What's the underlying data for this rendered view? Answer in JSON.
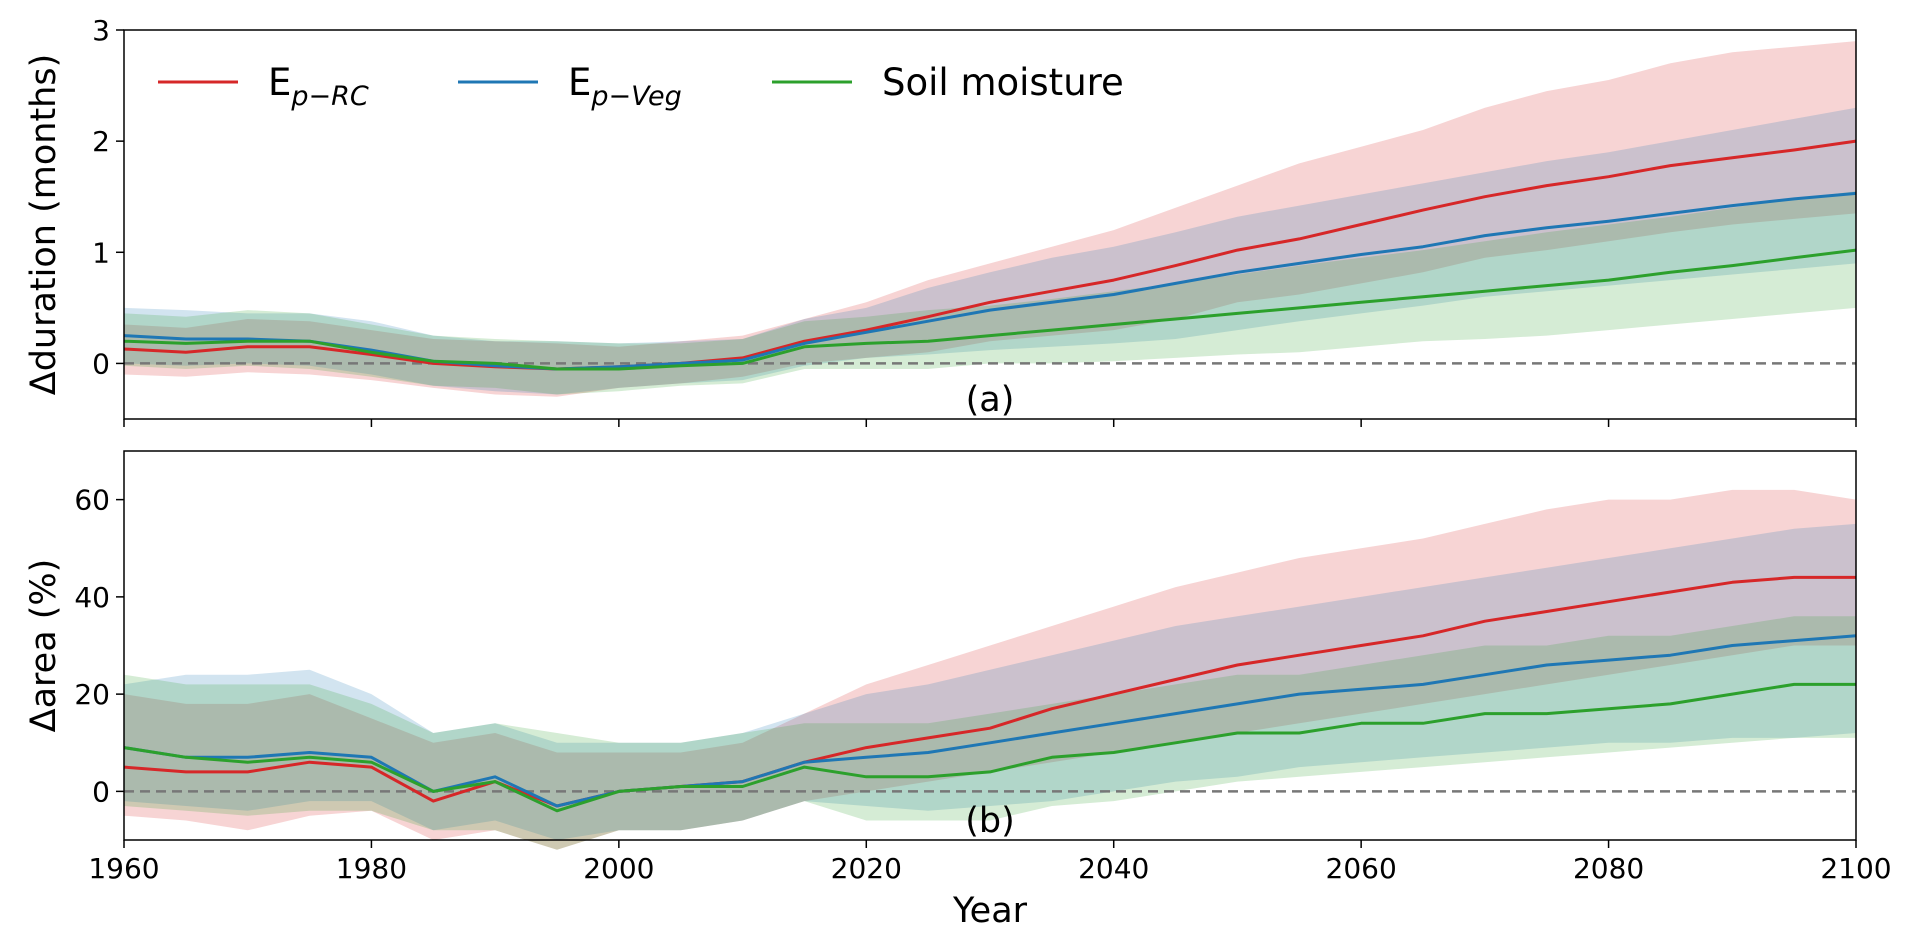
{
  "chart_data": {
    "type": "line",
    "x_range": [
      1960,
      2100
    ],
    "x_ticks": [
      1960,
      1980,
      2000,
      2020,
      2040,
      2060,
      2080,
      2100
    ],
    "xlabel": "Year",
    "legend": [
      {
        "name": "E",
        "sub": "p−RC",
        "color": "#d62728"
      },
      {
        "name": "E",
        "sub": "p−Veg",
        "color": "#1f77b4"
      },
      {
        "name": "Soil moisture",
        "sub": "",
        "color": "#2ca02c"
      }
    ],
    "panels": [
      {
        "label": "(a)",
        "ylabel": "Δduration (months)",
        "ylim": [
          -0.5,
          3
        ],
        "y_ticks": [
          0,
          1,
          2,
          3
        ],
        "reference_line": 0,
        "series": [
          {
            "name": "Ep-RC",
            "color": "#d62728",
            "years": [
              1960,
              1965,
              1970,
              1975,
              1980,
              1985,
              1990,
              1995,
              2000,
              2005,
              2010,
              2015,
              2020,
              2025,
              2030,
              2035,
              2040,
              2045,
              2050,
              2055,
              2060,
              2065,
              2070,
              2075,
              2080,
              2085,
              2090,
              2095,
              2100
            ],
            "mean": [
              0.13,
              0.1,
              0.15,
              0.15,
              0.08,
              0.0,
              -0.03,
              -0.05,
              -0.03,
              0.0,
              0.05,
              0.2,
              0.3,
              0.42,
              0.55,
              0.65,
              0.75,
              0.88,
              1.02,
              1.12,
              1.25,
              1.38,
              1.5,
              1.6,
              1.68,
              1.78,
              1.85,
              1.92,
              2.0
            ],
            "lower": [
              -0.1,
              -0.12,
              -0.08,
              -0.1,
              -0.15,
              -0.22,
              -0.28,
              -0.3,
              -0.22,
              -0.18,
              -0.12,
              0.0,
              0.05,
              0.1,
              0.2,
              0.25,
              0.3,
              0.4,
              0.55,
              0.62,
              0.72,
              0.82,
              0.95,
              1.02,
              1.1,
              1.18,
              1.25,
              1.3,
              1.35
            ],
            "upper": [
              0.35,
              0.32,
              0.4,
              0.38,
              0.3,
              0.22,
              0.2,
              0.18,
              0.15,
              0.2,
              0.25,
              0.4,
              0.55,
              0.75,
              0.9,
              1.05,
              1.2,
              1.4,
              1.6,
              1.8,
              1.95,
              2.1,
              2.3,
              2.45,
              2.55,
              2.7,
              2.8,
              2.85,
              2.9
            ]
          },
          {
            "name": "Ep-Veg",
            "color": "#1f77b4",
            "years": [
              1960,
              1965,
              1970,
              1975,
              1980,
              1985,
              1990,
              1995,
              2000,
              2005,
              2010,
              2015,
              2020,
              2025,
              2030,
              2035,
              2040,
              2045,
              2050,
              2055,
              2060,
              2065,
              2070,
              2075,
              2080,
              2085,
              2090,
              2095,
              2100
            ],
            "mean": [
              0.25,
              0.22,
              0.22,
              0.2,
              0.12,
              0.02,
              -0.02,
              -0.05,
              -0.03,
              0.0,
              0.03,
              0.18,
              0.28,
              0.38,
              0.48,
              0.55,
              0.62,
              0.72,
              0.82,
              0.9,
              0.98,
              1.05,
              1.15,
              1.22,
              1.28,
              1.35,
              1.42,
              1.48,
              1.53
            ],
            "lower": [
              0.0,
              -0.02,
              0.0,
              -0.02,
              -0.1,
              -0.2,
              -0.25,
              -0.28,
              -0.22,
              -0.18,
              -0.15,
              -0.02,
              0.05,
              0.08,
              0.12,
              0.15,
              0.18,
              0.22,
              0.3,
              0.38,
              0.45,
              0.52,
              0.6,
              0.65,
              0.7,
              0.75,
              0.8,
              0.85,
              0.9
            ],
            "upper": [
              0.5,
              0.48,
              0.45,
              0.45,
              0.38,
              0.25,
              0.2,
              0.2,
              0.18,
              0.2,
              0.22,
              0.4,
              0.5,
              0.68,
              0.82,
              0.95,
              1.05,
              1.18,
              1.32,
              1.42,
              1.52,
              1.62,
              1.72,
              1.82,
              1.9,
              2.0,
              2.1,
              2.2,
              2.3
            ]
          },
          {
            "name": "Soil moisture",
            "color": "#2ca02c",
            "years": [
              1960,
              1965,
              1970,
              1975,
              1980,
              1985,
              1990,
              1995,
              2000,
              2005,
              2010,
              2015,
              2020,
              2025,
              2030,
              2035,
              2040,
              2045,
              2050,
              2055,
              2060,
              2065,
              2070,
              2075,
              2080,
              2085,
              2090,
              2095,
              2100
            ],
            "mean": [
              0.2,
              0.18,
              0.2,
              0.2,
              0.1,
              0.02,
              0.0,
              -0.05,
              -0.05,
              -0.02,
              0.0,
              0.15,
              0.18,
              0.2,
              0.25,
              0.3,
              0.35,
              0.4,
              0.45,
              0.5,
              0.55,
              0.6,
              0.65,
              0.7,
              0.75,
              0.82,
              0.88,
              0.95,
              1.02
            ],
            "lower": [
              -0.02,
              -0.05,
              -0.02,
              -0.05,
              -0.12,
              -0.2,
              -0.22,
              -0.28,
              -0.25,
              -0.2,
              -0.18,
              -0.05,
              -0.05,
              -0.05,
              0.0,
              0.0,
              0.02,
              0.05,
              0.08,
              0.1,
              0.15,
              0.2,
              0.22,
              0.25,
              0.3,
              0.35,
              0.4,
              0.45,
              0.5
            ],
            "upper": [
              0.45,
              0.42,
              0.48,
              0.45,
              0.35,
              0.25,
              0.22,
              0.2,
              0.18,
              0.18,
              0.22,
              0.38,
              0.42,
              0.48,
              0.52,
              0.58,
              0.65,
              0.72,
              0.8,
              0.88,
              0.95,
              1.02,
              1.1,
              1.18,
              1.25,
              1.32,
              1.4,
              1.48,
              1.55
            ]
          }
        ]
      },
      {
        "label": "(b)",
        "ylabel": "Δarea (%)",
        "ylim": [
          -10,
          70
        ],
        "y_ticks": [
          0,
          20,
          40,
          60
        ],
        "reference_line": 0,
        "series": [
          {
            "name": "Ep-RC",
            "color": "#d62728",
            "years": [
              1960,
              1965,
              1970,
              1975,
              1980,
              1985,
              1990,
              1995,
              2000,
              2005,
              2010,
              2015,
              2020,
              2025,
              2030,
              2035,
              2040,
              2045,
              2050,
              2055,
              2060,
              2065,
              2070,
              2075,
              2080,
              2085,
              2090,
              2095,
              2100
            ],
            "mean": [
              5,
              4,
              4,
              6,
              5,
              -2,
              2,
              -3,
              0,
              1,
              2,
              6,
              9,
              11,
              13,
              17,
              20,
              23,
              26,
              28,
              30,
              32,
              35,
              37,
              39,
              41,
              43,
              44,
              44
            ],
            "lower": [
              -5,
              -6,
              -8,
              -5,
              -4,
              -10,
              -8,
              -12,
              -8,
              -8,
              -6,
              -2,
              0,
              2,
              4,
              6,
              8,
              10,
              12,
              14,
              16,
              18,
              20,
              22,
              24,
              26,
              28,
              30,
              30
            ],
            "upper": [
              20,
              18,
              18,
              20,
              15,
              10,
              12,
              8,
              8,
              8,
              10,
              16,
              22,
              26,
              30,
              34,
              38,
              42,
              45,
              48,
              50,
              52,
              55,
              58,
              60,
              60,
              62,
              62,
              60
            ]
          },
          {
            "name": "Ep-Veg",
            "color": "#1f77b4",
            "years": [
              1960,
              1965,
              1970,
              1975,
              1980,
              1985,
              1990,
              1995,
              2000,
              2005,
              2010,
              2015,
              2020,
              2025,
              2030,
              2035,
              2040,
              2045,
              2050,
              2055,
              2060,
              2065,
              2070,
              2075,
              2080,
              2085,
              2090,
              2095,
              2100
            ],
            "mean": [
              9,
              7,
              7,
              8,
              7,
              0,
              3,
              -3,
              0,
              1,
              2,
              6,
              7,
              8,
              10,
              12,
              14,
              16,
              18,
              20,
              21,
              22,
              24,
              26,
              27,
              28,
              30,
              31,
              32
            ],
            "lower": [
              -2,
              -3,
              -4,
              -2,
              -2,
              -8,
              -6,
              -10,
              -8,
              -8,
              -6,
              -2,
              -3,
              -4,
              -3,
              -2,
              0,
              2,
              3,
              5,
              6,
              7,
              8,
              9,
              10,
              10,
              11,
              11,
              12
            ],
            "upper": [
              22,
              24,
              24,
              25,
              20,
              12,
              14,
              10,
              10,
              10,
              12,
              16,
              20,
              22,
              25,
              28,
              31,
              34,
              36,
              38,
              40,
              42,
              44,
              46,
              48,
              50,
              52,
              54,
              55
            ]
          },
          {
            "name": "Soil moisture",
            "color": "#2ca02c",
            "years": [
              1960,
              1965,
              1970,
              1975,
              1980,
              1985,
              1990,
              1995,
              2000,
              2005,
              2010,
              2015,
              2020,
              2025,
              2030,
              2035,
              2040,
              2045,
              2050,
              2055,
              2060,
              2065,
              2070,
              2075,
              2080,
              2085,
              2090,
              2095,
              2100
            ],
            "mean": [
              9,
              7,
              6,
              7,
              6,
              0,
              2,
              -4,
              0,
              1,
              1,
              5,
              3,
              3,
              4,
              7,
              8,
              10,
              12,
              12,
              14,
              14,
              16,
              16,
              17,
              18,
              20,
              22,
              22
            ],
            "lower": [
              -3,
              -4,
              -5,
              -4,
              -4,
              -8,
              -8,
              -12,
              -8,
              -8,
              -6,
              -2,
              -6,
              -6,
              -6,
              -3,
              -2,
              0,
              2,
              3,
              4,
              5,
              6,
              7,
              8,
              9,
              10,
              11,
              11
            ],
            "upper": [
              24,
              22,
              22,
              22,
              18,
              12,
              14,
              12,
              10,
              10,
              12,
              14,
              14,
              14,
              16,
              18,
              20,
              22,
              24,
              24,
              26,
              28,
              30,
              30,
              32,
              32,
              34,
              36,
              36
            ]
          }
        ]
      }
    ]
  }
}
